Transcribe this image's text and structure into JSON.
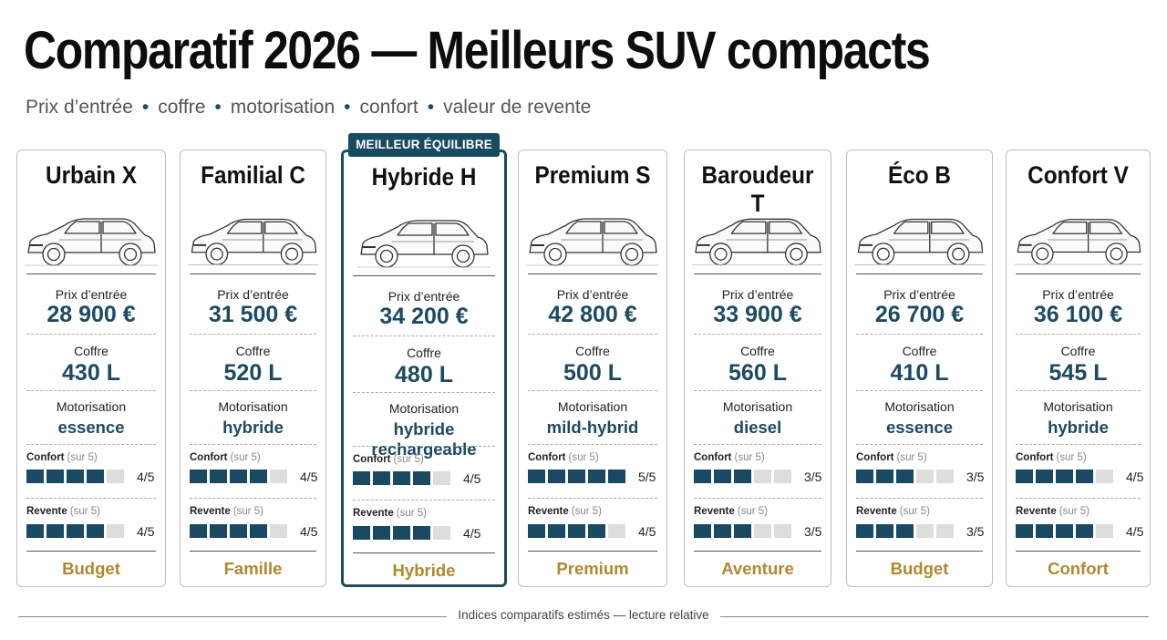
{
  "title": "Comparatif 2026 — Meilleurs SUV compacts",
  "subtitle": [
    "Prix d’entrée",
    "coffre",
    "motorisation",
    "confort",
    "valeur de revente"
  ],
  "badge": "MEILLEUR ÉQUILIBRE",
  "labels": {
    "price": "Prix d’entrée",
    "trunk": "Coffre",
    "engine": "Motorisation",
    "comfort": "Confort",
    "resale": "Revente",
    "scale": "(sur 5)"
  },
  "footer": "Indices comparatifs estimés — lecture relative",
  "colors": {
    "accent": "#1a4a63",
    "category": "#b2872e",
    "bar_empty": "#dddddd"
  },
  "chart_data": {
    "type": "table",
    "cards": [
      {
        "name": "Urbain X",
        "price": "28 900 €",
        "trunk": "430 L",
        "engine": "essence",
        "comfort": 4,
        "comfort_text": "4/5",
        "resale": 4,
        "resale_text": "4/5",
        "category": "Budget"
      },
      {
        "name": "Familial C",
        "price": "31 500 €",
        "trunk": "520 L",
        "engine": "hybride",
        "comfort": 4,
        "comfort_text": "4/5",
        "resale": 4,
        "resale_text": "4/5",
        "category": "Famille"
      },
      {
        "name": "Hybride H",
        "price": "34 200 €",
        "trunk": "480 L",
        "engine": "hybride rechargeable",
        "comfort": 4,
        "comfort_text": "4/5",
        "resale": 4,
        "resale_text": "4/5",
        "category": "Hybride",
        "highlight": true
      },
      {
        "name": "Premium S",
        "price": "42 800 €",
        "trunk": "500 L",
        "engine": "mild-hybrid",
        "comfort": 5,
        "comfort_text": "5/5",
        "resale": 4,
        "resale_text": "4/5",
        "category": "Premium"
      },
      {
        "name": "Baroudeur T",
        "price": "33 900 €",
        "trunk": "560 L",
        "engine": "diesel",
        "comfort": 3,
        "comfort_text": "3/5",
        "resale": 3,
        "resale_text": "3/5",
        "category": "Aventure"
      },
      {
        "name": "Éco B",
        "price": "26 700 €",
        "trunk": "410 L",
        "engine": "essence",
        "comfort": 3,
        "comfort_text": "3/5",
        "resale": 3,
        "resale_text": "3/5",
        "category": "Budget"
      },
      {
        "name": "Confort V",
        "price": "36 100 €",
        "trunk": "545 L",
        "engine": "hybride",
        "comfort": 4,
        "comfort_text": "4/5",
        "resale": 4,
        "resale_text": "4/5",
        "category": "Confort"
      }
    ],
    "max_score": 5
  }
}
